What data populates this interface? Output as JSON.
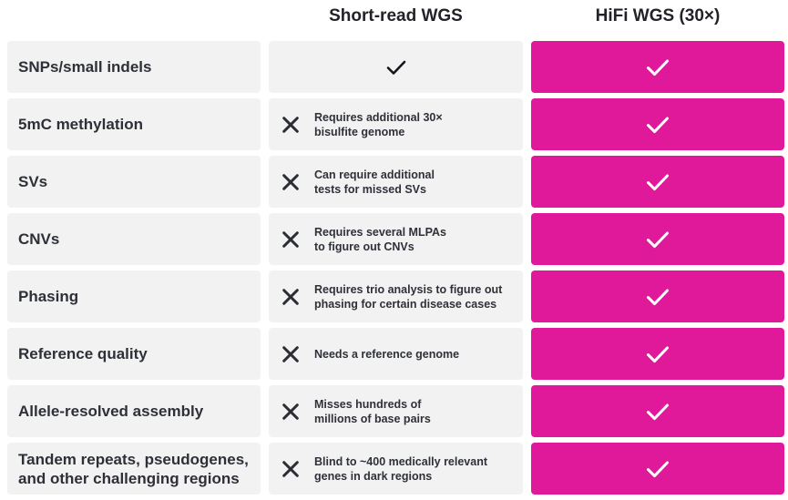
{
  "header": {
    "short_read": "Short-read WGS",
    "hifi": "HiFi WGS (30×)"
  },
  "colors": {
    "hifi_accent": "#e0199a",
    "cell_background": "#f2f2f2",
    "text_dark": "#2e3038"
  },
  "rows": [
    {
      "label": [
        "SNPs/small indels"
      ],
      "short_read": {
        "supported": true,
        "note": []
      },
      "hifi": {
        "supported": true
      }
    },
    {
      "label": [
        "5mC methylation"
      ],
      "short_read": {
        "supported": false,
        "note": [
          "Requires additional 30×",
          "bisulfite genome"
        ]
      },
      "hifi": {
        "supported": true
      }
    },
    {
      "label": [
        "SVs"
      ],
      "short_read": {
        "supported": false,
        "note": [
          "Can require additional",
          "tests for missed SVs"
        ]
      },
      "hifi": {
        "supported": true
      }
    },
    {
      "label": [
        "CNVs"
      ],
      "short_read": {
        "supported": false,
        "note": [
          "Requires several MLPAs",
          "to figure out CNVs"
        ]
      },
      "hifi": {
        "supported": true
      }
    },
    {
      "label": [
        "Phasing"
      ],
      "short_read": {
        "supported": false,
        "note": [
          "Requires trio analysis to figure out",
          "phasing for certain disease cases"
        ]
      },
      "hifi": {
        "supported": true
      }
    },
    {
      "label": [
        "Reference quality"
      ],
      "short_read": {
        "supported": false,
        "note": [
          "Needs a reference genome"
        ]
      },
      "hifi": {
        "supported": true
      }
    },
    {
      "label": [
        "Allele-resolved assembly"
      ],
      "short_read": {
        "supported": false,
        "note": [
          "Misses hundreds of",
          "millions of base pairs"
        ]
      },
      "hifi": {
        "supported": true
      }
    },
    {
      "label": [
        "Tandem repeats, pseudogenes,",
        "and other challenging regions"
      ],
      "short_read": {
        "supported": false,
        "note": [
          "Blind to ~400 medically relevant",
          "genes in dark regions"
        ]
      },
      "hifi": {
        "supported": true
      }
    }
  ]
}
